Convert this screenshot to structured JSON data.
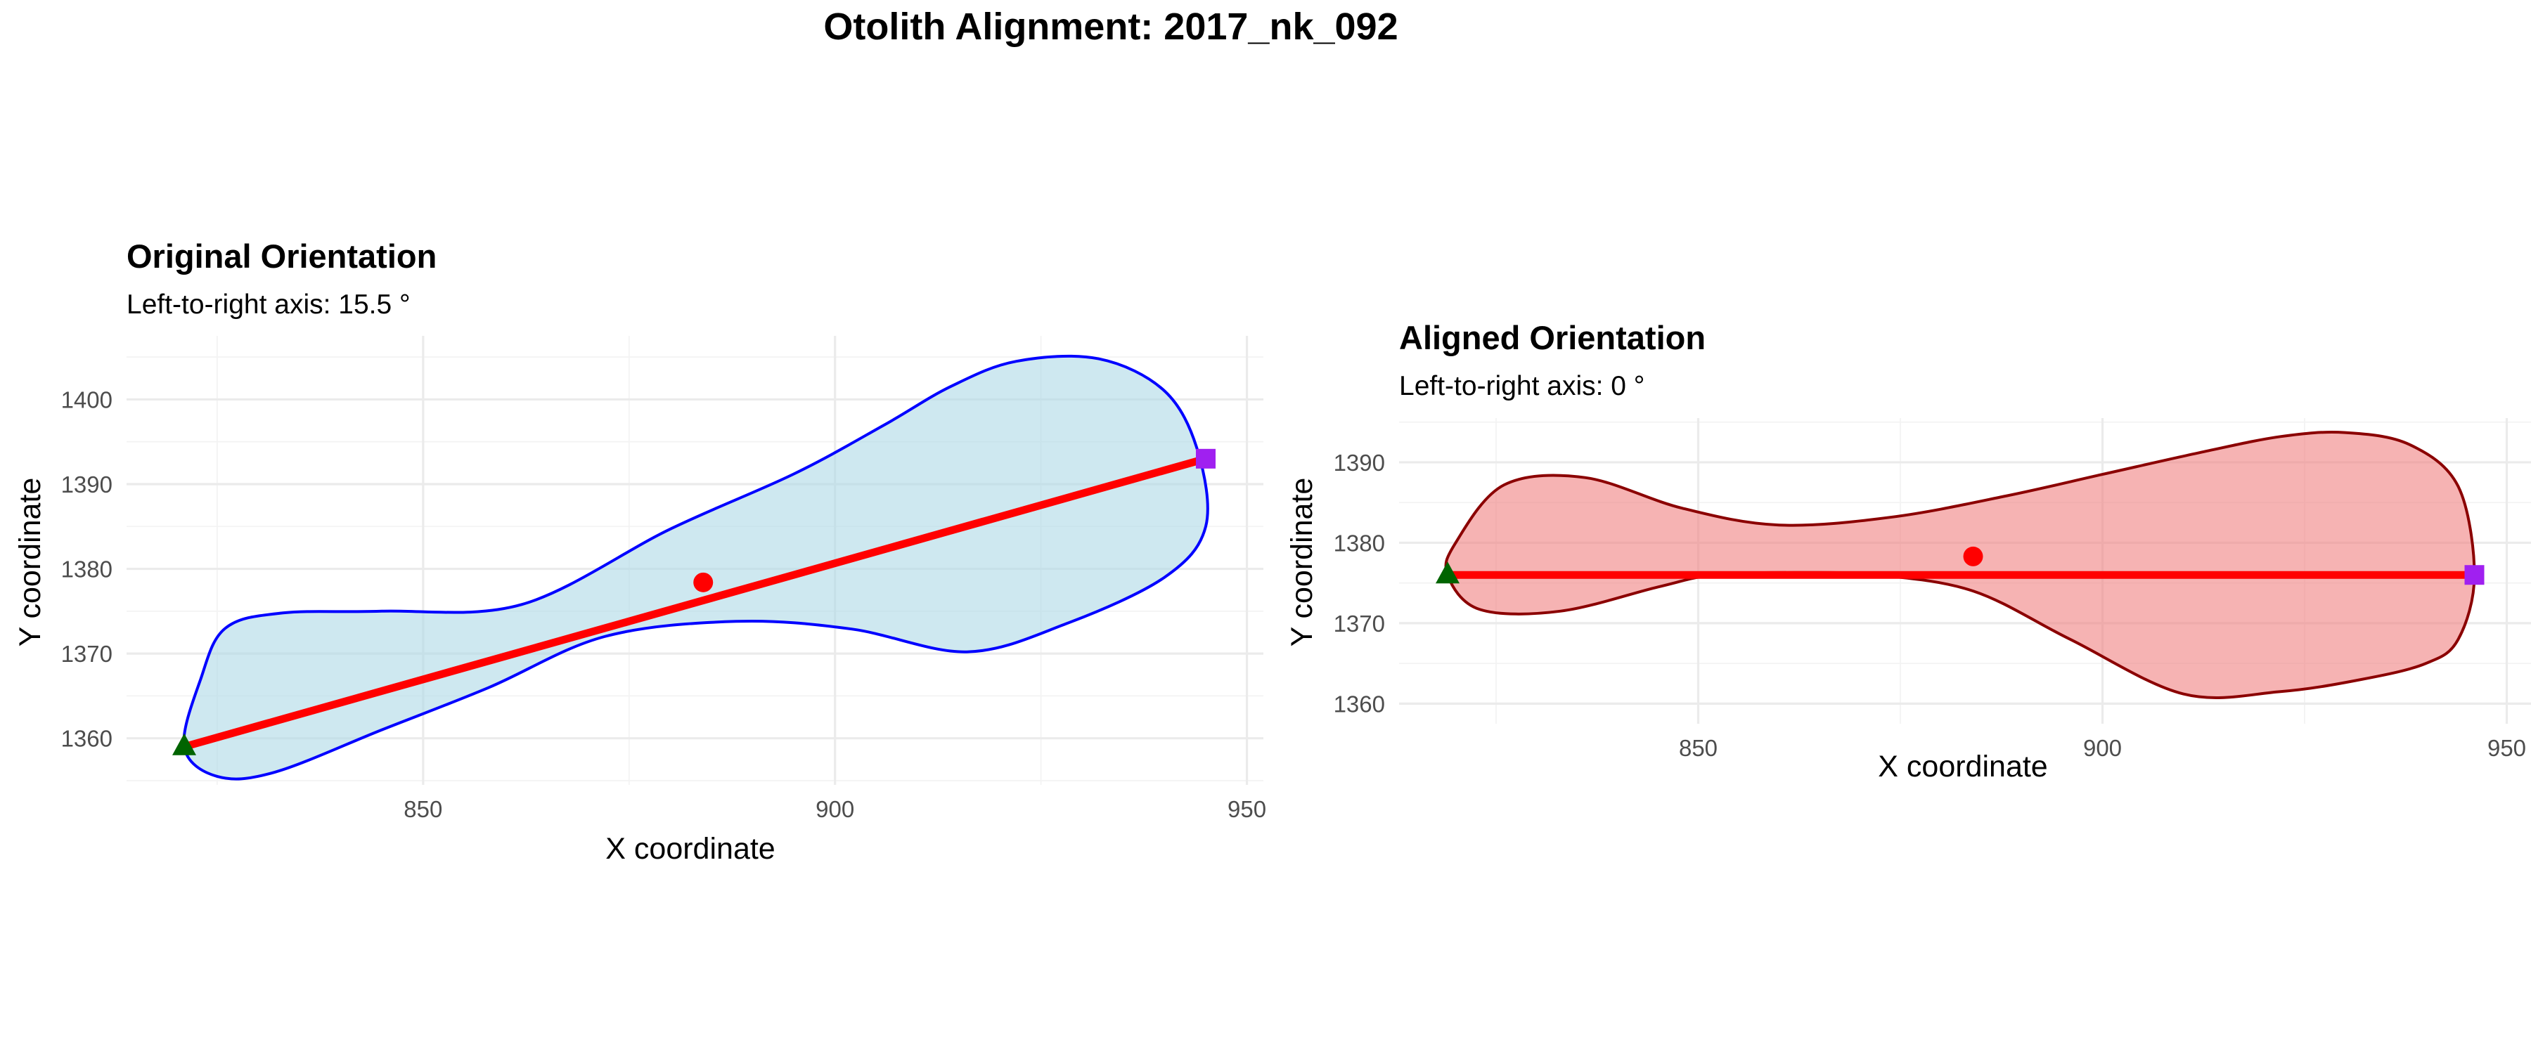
{
  "figure": {
    "title": "Otolith Alignment: 2017_nk_092"
  },
  "colors": {
    "original_fill": "#add8e6",
    "original_outline": "#0000ff",
    "aligned_fill": "#f08080",
    "aligned_outline": "#8b0000",
    "axis_line": "#ff0000",
    "centroid": "#ff0000",
    "left_point": "#006400",
    "right_point": "#a020f0"
  },
  "chart_data": [
    {
      "type": "area",
      "title": "Original Orientation",
      "subtitle": "Left-to-right axis: 15.5 °",
      "xlabel": "X coordinate",
      "ylabel": "Y coordinate",
      "xlim": [
        814,
        952
      ],
      "ylim": [
        1354.5,
        1407.5
      ],
      "x_ticks": [
        850,
        900,
        950
      ],
      "y_ticks": [
        1360,
        1370,
        1380,
        1390,
        1400
      ],
      "grid": true,
      "outline": {
        "x": [
          821,
          825,
          832,
          845,
          858,
          872,
          888,
          902,
          916,
          928,
          940,
          945,
          944,
          940,
          932,
          922,
          914,
          906,
          895,
          880,
          862,
          845,
          833,
          826,
          823,
          821
        ],
        "y": [
          1359,
          1355.5,
          1356,
          1361,
          1366,
          1372,
          1373.8,
          1372.9,
          1370.2,
          1373.5,
          1379,
          1385,
          1394,
          1401,
          1404.8,
          1404.5,
          1401.5,
          1397,
          1391.2,
          1384.7,
          1375.8,
          1375,
          1374.8,
          1373,
          1367,
          1359
        ]
      },
      "axis_line": {
        "x": [
          821,
          945
        ],
        "y": [
          1359,
          1393
        ]
      },
      "centroid": {
        "x": 884,
        "y": 1378.4
      },
      "left_point": {
        "x": 821,
        "y": 1359
      },
      "right_point": {
        "x": 945,
        "y": 1393
      }
    },
    {
      "type": "area",
      "title": "Aligned Orientation",
      "subtitle": "Left-to-right axis: 0 °",
      "xlabel": "X coordinate",
      "ylabel": "Y coordinate",
      "xlim": [
        813,
        953
      ],
      "ylim": [
        1357.5,
        1395.5
      ],
      "x_ticks": [
        850,
        900,
        950
      ],
      "y_ticks": [
        1360,
        1370,
        1380,
        1390
      ],
      "grid": true,
      "outline": {
        "x": [
          819,
          823,
          833,
          845,
          852,
          862,
          872,
          884,
          896,
          910,
          922,
          932,
          940,
          944,
          946,
          944,
          938,
          930,
          922,
          912,
          900,
          888,
          874,
          860,
          848,
          836,
          826,
          820,
          819
        ],
        "y": [
          1376,
          1371.7,
          1371.5,
          1374.5,
          1376,
          1376.3,
          1376,
          1374,
          1368,
          1361.2,
          1361.5,
          1363,
          1365,
          1368,
          1376,
          1387,
          1392.2,
          1393.7,
          1393.2,
          1391.2,
          1388.5,
          1385.8,
          1383.2,
          1382.2,
          1384.3,
          1388.1,
          1387.2,
          1380,
          1376
        ]
      },
      "axis_line": {
        "x": [
          819,
          946
        ],
        "y": [
          1376,
          1376
        ]
      },
      "centroid": {
        "x": 884,
        "y": 1378.3
      },
      "left_point": {
        "x": 819,
        "y": 1376
      },
      "right_point": {
        "x": 946,
        "y": 1376
      }
    }
  ]
}
